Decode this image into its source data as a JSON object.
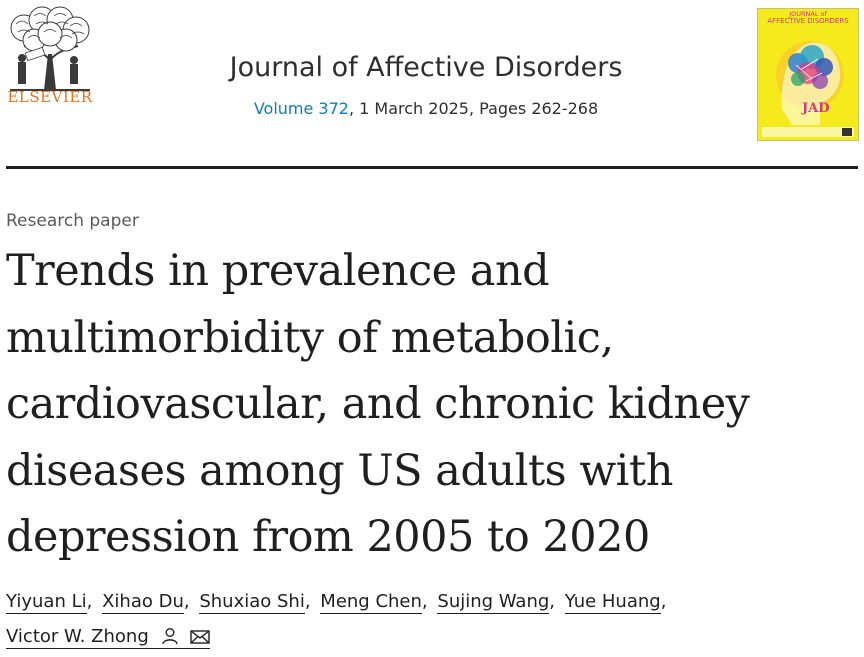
{
  "header": {
    "publisher": "ELSEVIER",
    "journal_title": "Journal of Affective Disorders",
    "volume_link": "Volume 372",
    "issue_info": ", 1 March 2025, Pages 262-268",
    "cover": {
      "title_line1": "JOURNAL of",
      "title_line2": "AFFECTIVE DISORDERS",
      "badge": "JAD"
    }
  },
  "article": {
    "type": "Research paper",
    "title_lines": [
      "Trends in prevalence and",
      "multimorbidity of metabolic,",
      "cardiovascular, and chronic kidney",
      "diseases among US adults with",
      "depression from 2005 to 2020"
    ]
  },
  "authors": [
    "Yiyuan Li",
    "Xihao Du",
    "Shuxiao Shi",
    "Meng Chen",
    "Sujing Wang",
    "Yue Huang",
    "Victor W. Zhong"
  ],
  "separator": ",",
  "icons": {
    "corresponding": "person-icon",
    "email": "mail-icon"
  },
  "colors": {
    "publisher_orange": "#e9711c",
    "link_blue": "#0c7dbb",
    "cover_yellow": "#f5ea1b",
    "cover_magenta": "#d6338b"
  }
}
